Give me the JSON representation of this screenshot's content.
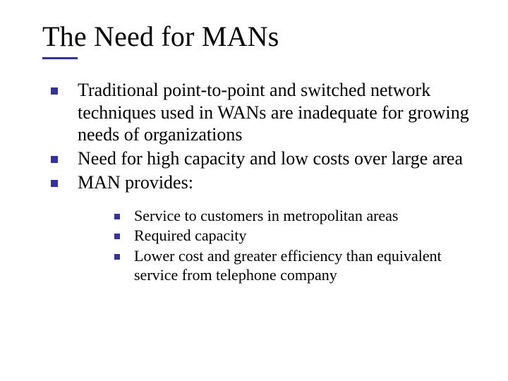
{
  "slide": {
    "title": "The Need for MANs",
    "title_fontsize": 40,
    "title_color": "#000000",
    "accent_color": "#333399",
    "background_color": "#ffffff",
    "body_font": "Times New Roman",
    "level1_fontsize": 26,
    "level2_fontsize": 22,
    "bullet_shape": "square",
    "bullets": [
      {
        "text": "Traditional point-to-point and switched network techniques used in WANs are inadequate for growing needs of organizations"
      },
      {
        "text": "Need for high capacity and low costs over large area"
      },
      {
        "text": "MAN provides:"
      }
    ],
    "sub_bullets": [
      {
        "text": "Service to customers in metropolitan areas"
      },
      {
        "text": "Required capacity"
      },
      {
        "text": "Lower cost and greater efficiency than equivalent service from telephone company"
      }
    ]
  }
}
